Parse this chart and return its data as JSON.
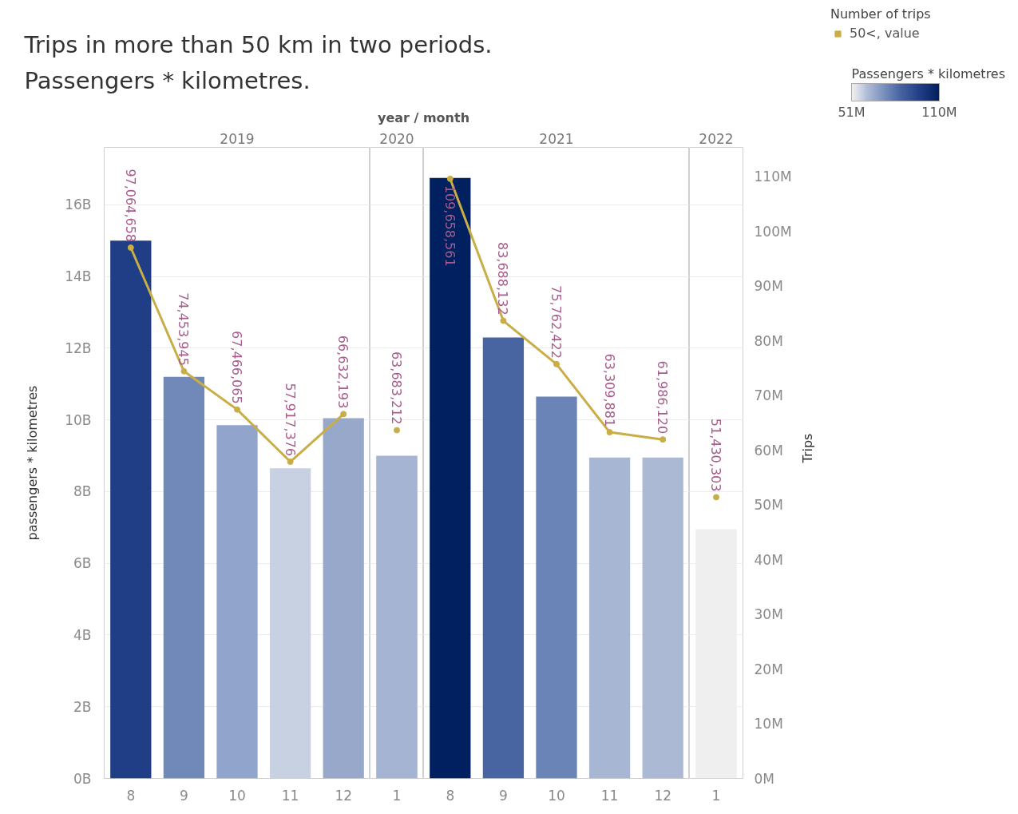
{
  "chart_data": [
    {
      "type": "other",
      "title": "Trips in more than 50 km in two periods.",
      "subtitle": "Passengers * kilometres.",
      "annotations": [
        "year / month"
      ]
    },
    {
      "type": "bar",
      "title": "2019",
      "categories": [
        "8",
        "9",
        "10",
        "11",
        "12"
      ],
      "ylabel": "passengers * kilometres",
      "ylim": [
        0,
        17600000000
      ],
      "yticks": [
        {
          "value": 0,
          "label": "0B"
        },
        {
          "value": 2000000000,
          "label": "2B"
        },
        {
          "value": 4000000000,
          "label": "4B"
        },
        {
          "value": 6000000000,
          "label": "6B"
        },
        {
          "value": 8000000000,
          "label": "8B"
        },
        {
          "value": 10000000000,
          "label": "10B"
        },
        {
          "value": 12000000000,
          "label": "12B"
        },
        {
          "value": 14000000000,
          "label": "14B"
        },
        {
          "value": 16000000000,
          "label": "16B"
        }
      ],
      "y2lim": [
        0,
        115400000
      ],
      "grid": "y",
      "tick_labels": "xy",
      "series": [
        {
          "type": "bar",
          "values": [
            15000000000,
            11200000000,
            9850000000,
            8650000000,
            10050000000
          ],
          "colors": [
            "#1f3e86",
            "#7189b9",
            "#91a5cc",
            "#c8d1e2",
            "#97a8cb"
          ]
        },
        {
          "type": "line",
          "axis": "y2",
          "color": "#c9ae45",
          "marker": "circle",
          "values": [
            97064658,
            74453945,
            67466065,
            57917376,
            66632193
          ],
          "value_labels": [
            "97,064,658",
            "74,453,945",
            "67,466,065",
            "57,917,376",
            "66,632,193"
          ]
        }
      ]
    },
    {
      "type": "bar",
      "title": "2020",
      "categories": [
        "1"
      ],
      "ylim": [
        0,
        17600000000
      ],
      "y2lim": [
        0,
        115400000
      ],
      "grid": "y",
      "tick_labels": "x",
      "series": [
        {
          "type": "bar",
          "values": [
            9000000000
          ],
          "colors": [
            "#a5b4d2"
          ]
        },
        {
          "type": "line",
          "axis": "y2",
          "color": "#c9ae45",
          "marker": "circle",
          "values": [
            63683212
          ],
          "value_labels": [
            "63,683,212"
          ]
        }
      ]
    },
    {
      "type": "bar",
      "title": "2021",
      "categories": [
        "8",
        "9",
        "10",
        "11",
        "12"
      ],
      "ylim": [
        0,
        17600000000
      ],
      "y2lim": [
        0,
        115400000
      ],
      "grid": "y",
      "tick_labels": "x",
      "series": [
        {
          "type": "bar",
          "values": [
            16750000000,
            12300000000,
            10650000000,
            8950000000,
            8950000000
          ],
          "colors": [
            "#00205f",
            "#4865a2",
            "#6a84b7",
            "#a6b6d3",
            "#abb9d4"
          ]
        },
        {
          "type": "line",
          "axis": "y2",
          "color": "#c9ae45",
          "marker": "circle",
          "values": [
            109658561,
            83688132,
            75762422,
            63309881,
            61986120
          ],
          "value_labels": [
            "109,658,561",
            "83,688,132",
            "75,762,422",
            "63,309,881",
            "61,986,120"
          ]
        }
      ]
    },
    {
      "type": "bar",
      "title": "2022",
      "categories": [
        "1"
      ],
      "y2label": "Trips",
      "ylim": [
        0,
        17600000000
      ],
      "y2lim": [
        0,
        115400000
      ],
      "y2ticks": [
        {
          "value": 0,
          "label": "0M"
        },
        {
          "value": 10000000,
          "label": "10M"
        },
        {
          "value": 20000000,
          "label": "20M"
        },
        {
          "value": 30000000,
          "label": "30M"
        },
        {
          "value": 40000000,
          "label": "40M"
        },
        {
          "value": 50000000,
          "label": "50M"
        },
        {
          "value": 60000000,
          "label": "60M"
        },
        {
          "value": 70000000,
          "label": "70M"
        },
        {
          "value": 80000000,
          "label": "80M"
        },
        {
          "value": 90000000,
          "label": "90M"
        },
        {
          "value": 100000000,
          "label": "100M"
        },
        {
          "value": 110000000,
          "label": "110M"
        }
      ],
      "grid": "y",
      "tick_labels": "xy2",
      "legend": "top right",
      "legend_title": "Number of trips",
      "clabel": "Passengers * kilometres",
      "clim": [
        51000000,
        110000000
      ],
      "cticks": [
        {
          "value": 51000000,
          "label": "51M"
        },
        {
          "value": 110000000,
          "label": "110M"
        }
      ],
      "series": [
        {
          "type": "bar",
          "values": [
            6950000000
          ],
          "colors": [
            "#efefef"
          ]
        },
        {
          "type": "line",
          "axis": "y2",
          "name": "50<, value",
          "color": "#c9ae45",
          "marker": "circle",
          "values": [
            51430303
          ],
          "value_labels": [
            "51,430,303"
          ]
        }
      ]
    }
  ]
}
